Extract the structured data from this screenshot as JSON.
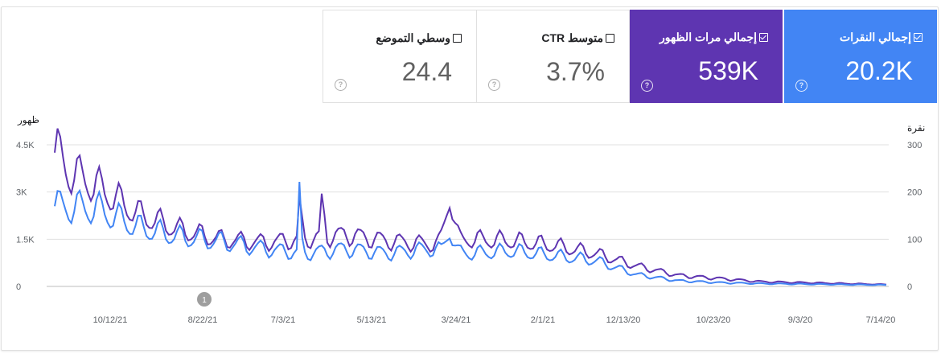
{
  "cards": [
    {
      "key": "clicks",
      "label": "إجمالي النقرات",
      "value": "20.2K",
      "checked": true
    },
    {
      "key": "impr",
      "label": "إجمالي مرات الظهور",
      "value": "539K",
      "checked": true
    },
    {
      "key": "ctr",
      "label": "متوسط CTR",
      "value": "3.7%",
      "checked": false
    },
    {
      "key": "pos",
      "label": "وسطي التموضع",
      "value": "24.4",
      "checked": false
    }
  ],
  "help_glyph": "?",
  "chart_data": {
    "type": "line",
    "y_left_label": "ظهور",
    "y_right_label": "نقرة",
    "y_left_ticks": [
      "4.5K",
      "3K",
      "1.5K",
      "0"
    ],
    "y_right_ticks": [
      "300",
      "200",
      "100",
      "0"
    ],
    "ylim_left": [
      0,
      4500
    ],
    "ylim_right": [
      0,
      300
    ],
    "x_ticks": [
      "10/12/21",
      "8/22/21",
      "7/3/21",
      "5/13/21",
      "3/24/21",
      "2/1/21",
      "12/13/20",
      "10/23/20",
      "9/3/20",
      "7/14/20"
    ],
    "x_direction": "right-to-left (newest on left)",
    "annotation": "1",
    "colors": {
      "impressions": "#5e35b1",
      "clicks": "#4285f4"
    },
    "impressions_by_period": [
      3900,
      3200,
      2300,
      1800,
      1500,
      1400,
      1500,
      1650,
      1450,
      1350,
      1500,
      1450,
      1300,
      1050,
      650,
      350,
      250,
      150,
      120,
      90,
      60
    ],
    "clicks_by_period": [
      170,
      165,
      125,
      105,
      95,
      80,
      70,
      80,
      70,
      80,
      70,
      75,
      65,
      55,
      25,
      12,
      8,
      6,
      5,
      4,
      3
    ]
  }
}
